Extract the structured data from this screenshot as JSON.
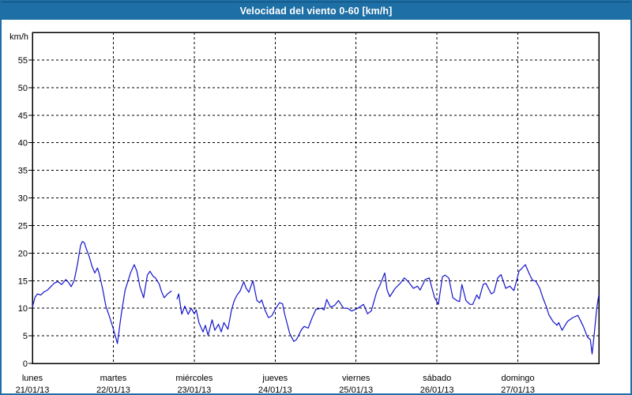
{
  "window": {
    "title": "Velocidad del viento 0-60 [km/h]"
  },
  "colors": {
    "titlebar_bg": "#1D6FA5",
    "titlebar_text": "#FFFFFF",
    "window_border": "#1D6FA5",
    "plot_background": "#FFFFFF",
    "grid_color": "#000000",
    "axis_frame_color": "#000000",
    "line_color": "#1414CC"
  },
  "chart_data": {
    "type": "line",
    "title": "Velocidad del viento 0-60 [km/h]",
    "ylabel": "km/h",
    "ylim": [
      0,
      60
    ],
    "yticks": [
      0,
      5,
      10,
      15,
      20,
      25,
      30,
      35,
      40,
      45,
      50,
      55
    ],
    "xlim_hours": [
      0,
      168
    ],
    "grid": "dashed",
    "legend": "none",
    "days": [
      {
        "weekday": "lunes",
        "date": "21/01/13"
      },
      {
        "weekday": "martes",
        "date": "22/01/13"
      },
      {
        "weekday": "miércoles",
        "date": "23/01/13"
      },
      {
        "weekday": "jueves",
        "date": "24/01/13"
      },
      {
        "weekday": "viernes",
        "date": "25/01/13"
      },
      {
        "weekday": "sábado",
        "date": "26/01/13"
      },
      {
        "weekday": "domingo",
        "date": "27/01/13"
      }
    ],
    "series": [
      {
        "name": "velocidad del viento",
        "color": "#1414CC",
        "x_unit": "hours since lunes 00:00",
        "y_unit": "km/h",
        "segments": [
          [
            [
              0,
              10.2
            ],
            [
              0.8,
              12
            ],
            [
              1.5,
              12.6
            ],
            [
              2.5,
              12.4
            ],
            [
              3.3,
              12.9
            ],
            [
              4.5,
              13.3
            ],
            [
              5.6,
              14
            ],
            [
              6.6,
              14.6
            ],
            [
              7.6,
              14.8
            ],
            [
              8.7,
              14.3
            ],
            [
              9.9,
              15.2
            ],
            [
              10.8,
              14.6
            ],
            [
              11.5,
              13.9
            ],
            [
              12.4,
              15
            ],
            [
              13.4,
              18.1
            ],
            [
              14.3,
              21.4
            ],
            [
              14.8,
              22.1
            ],
            [
              15.4,
              21.9
            ],
            [
              15.9,
              20.9
            ],
            [
              16.9,
              19.3
            ],
            [
              17.7,
              17.6
            ],
            [
              18.5,
              16.4
            ],
            [
              19.3,
              17.3
            ],
            [
              19.9,
              16.1
            ],
            [
              20.9,
              13.3
            ],
            [
              21.8,
              10.4
            ],
            [
              22.8,
              8.6
            ],
            [
              24,
              6.3
            ],
            [
              25.2,
              3.6
            ],
            [
              26.3,
              8.6
            ],
            [
              27.5,
              13.3
            ],
            [
              28.4,
              15
            ],
            [
              29.1,
              16.4
            ],
            [
              30.2,
              17.9
            ],
            [
              31,
              16.7
            ],
            [
              31.9,
              13.9
            ],
            [
              33,
              11.9
            ],
            [
              34.1,
              16
            ],
            [
              34.9,
              16.7
            ],
            [
              35.8,
              15.8
            ],
            [
              36.5,
              15.5
            ],
            [
              37.6,
              14.4
            ],
            [
              38.3,
              13
            ],
            [
              39.1,
              11.9
            ],
            [
              40.1,
              12.6
            ],
            [
              41.2,
              13.1
            ]
          ],
          [
            [
              42.9,
              11.7
            ],
            [
              43.4,
              12.6
            ],
            [
              44.3,
              8.9
            ],
            [
              45.2,
              10.4
            ],
            [
              46.2,
              8.9
            ],
            [
              47.1,
              10
            ],
            [
              48,
              9
            ],
            [
              48.6,
              9.7
            ],
            [
              49.4,
              7.4
            ],
            [
              50.6,
              5.7
            ],
            [
              51.3,
              6.9
            ],
            [
              52.1,
              5.1
            ],
            [
              53.3,
              7.9
            ],
            [
              54.1,
              6
            ],
            [
              55.2,
              7.1
            ],
            [
              56,
              5.7
            ],
            [
              56.8,
              7.4
            ],
            [
              58,
              6.2
            ],
            [
              59.1,
              9.8
            ],
            [
              59.9,
              11.4
            ],
            [
              60.7,
              12.4
            ],
            [
              61.6,
              13.1
            ],
            [
              62.7,
              14.8
            ],
            [
              63.4,
              13.6
            ],
            [
              64.2,
              12.9
            ],
            [
              65.4,
              15
            ],
            [
              66.6,
              11.4
            ],
            [
              67.4,
              11
            ],
            [
              68,
              11.5
            ],
            [
              68.9,
              9.8
            ],
            [
              70,
              8.3
            ],
            [
              71,
              8.6
            ],
            [
              72,
              9.8
            ],
            [
              73.3,
              11
            ],
            [
              74.2,
              10.8
            ],
            [
              74.8,
              9
            ],
            [
              76.3,
              5.5
            ],
            [
              77.5,
              4
            ],
            [
              78.3,
              4.3
            ],
            [
              79.9,
              6.2
            ],
            [
              80.6,
              6.7
            ],
            [
              81.8,
              6.4
            ],
            [
              83,
              8.3
            ],
            [
              84.1,
              9.8
            ],
            [
              85.7,
              10
            ],
            [
              86.5,
              9.7
            ],
            [
              87.3,
              11.6
            ],
            [
              88.4,
              10.2
            ],
            [
              89.6,
              10.5
            ],
            [
              90.8,
              11.4
            ],
            [
              92.3,
              10
            ],
            [
              93.5,
              10
            ],
            [
              94.7,
              9.5
            ],
            [
              95.9,
              9.8
            ],
            [
              97,
              10.2
            ],
            [
              98.2,
              10.7
            ],
            [
              99.4,
              9
            ],
            [
              100.5,
              9.5
            ],
            [
              102.1,
              12.9
            ],
            [
              103.3,
              14.5
            ],
            [
              104.5,
              16.4
            ],
            [
              105.2,
              13.3
            ],
            [
              106,
              12.1
            ],
            [
              107.6,
              13.6
            ],
            [
              109.1,
              14.5
            ],
            [
              110.3,
              15.5
            ],
            [
              111.5,
              14.8
            ],
            [
              113,
              13.6
            ],
            [
              114.2,
              14
            ],
            [
              115,
              13.3
            ],
            [
              116.5,
              15.2
            ],
            [
              117.7,
              15.5
            ],
            [
              119.3,
              11.9
            ],
            [
              120.4,
              10.7
            ],
            [
              121.6,
              15.7
            ],
            [
              122.4,
              16
            ],
            [
              123.5,
              15.5
            ],
            [
              124.7,
              11.9
            ],
            [
              125.9,
              11.4
            ],
            [
              126.7,
              11.2
            ],
            [
              127.4,
              14.3
            ],
            [
              128.6,
              11.4
            ],
            [
              129.8,
              10.7
            ],
            [
              130.6,
              10.7
            ],
            [
              131.8,
              12.4
            ],
            [
              132.5,
              11.7
            ],
            [
              133.7,
              14.3
            ],
            [
              134.5,
              14.5
            ],
            [
              136.1,
              12.6
            ],
            [
              136.9,
              12.9
            ],
            [
              138,
              15.5
            ],
            [
              139,
              16.1
            ],
            [
              140.4,
              13.6
            ],
            [
              141.6,
              14
            ],
            [
              142.8,
              13.2
            ],
            [
              143.7,
              15.2
            ],
            [
              144.3,
              16.7
            ],
            [
              146.2,
              17.9
            ],
            [
              147.4,
              16.2
            ],
            [
              148.3,
              15.1
            ],
            [
              149.3,
              14.9
            ],
            [
              150.5,
              13.6
            ],
            [
              151.4,
              11.9
            ],
            [
              152.5,
              10.2
            ],
            [
              153.2,
              8.8
            ],
            [
              154.4,
              7.6
            ],
            [
              155.6,
              6.9
            ],
            [
              156.1,
              7.4
            ],
            [
              157.1,
              6
            ],
            [
              158.7,
              7.6
            ],
            [
              160.3,
              8.3
            ],
            [
              161.8,
              8.7
            ],
            [
              163.4,
              6.7
            ],
            [
              164.6,
              4.8
            ],
            [
              165.5,
              4.3
            ],
            [
              166,
              1.7
            ],
            [
              166.6,
              5
            ],
            [
              167.4,
              10
            ],
            [
              168,
              12.4
            ]
          ]
        ]
      }
    ]
  }
}
